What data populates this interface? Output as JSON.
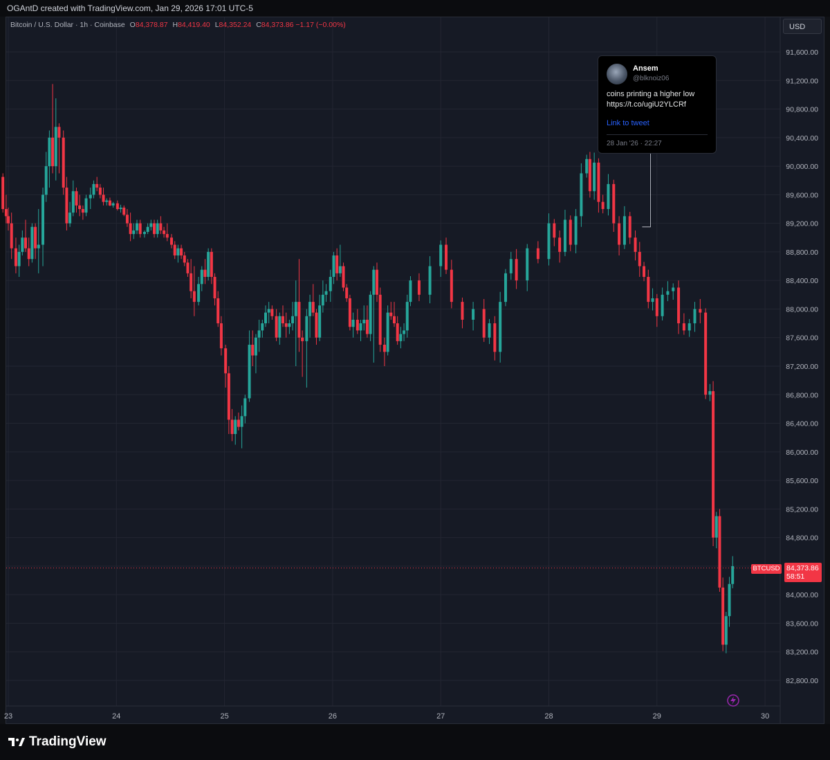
{
  "header": {
    "attribution": "OGAntD created with TradingView.com, Jan 29, 2026 17:01 UTC-5"
  },
  "legend": {
    "symbol_text": "Bitcoin / U.S. Dollar · 1h · Coinbase",
    "open_label": "O",
    "open": "84,378.87",
    "high_label": "H",
    "high": "84,419.40",
    "low_label": "L",
    "low": "84,352.24",
    "close_label": "C",
    "close": "84,373.86",
    "change": "−1.17 (−0.00%)"
  },
  "currency_button": "USD",
  "price_tag": {
    "symbol": "BTCUSD",
    "price": "84,373.86",
    "countdown": "58:51"
  },
  "tweet": {
    "name": "Ansem",
    "handle": "@blknoiz06",
    "text_line1": "coins printing a higher low",
    "text_line2": "https://t.co/ugiU2YLCRf",
    "link_label": "Link to tweet",
    "date": "28 Jan '26 · 22:27"
  },
  "footer": {
    "logo_text": "TradingView"
  },
  "colors": {
    "up": "#26a69a",
    "down": "#f23645",
    "background": "#161a25",
    "grid": "#232632"
  },
  "icons": [
    "tradingview-logo-icon",
    "lightning-badge-icon"
  ],
  "chart_data": {
    "type": "candlestick",
    "title": "Bitcoin / U.S. Dollar · 1h · Coinbase",
    "ylim": [
      82600,
      91950
    ],
    "y_ticks": [
      91600,
      91200,
      90800,
      90400,
      90000,
      89600,
      89200,
      88800,
      88400,
      88000,
      87600,
      87200,
      86800,
      86400,
      86000,
      85600,
      85200,
      84800,
      84400,
      84000,
      83600,
      83200,
      82800
    ],
    "y_tick_labels": [
      "91,600.00",
      "91,200.00",
      "90,800.00",
      "90,400.00",
      "90,000.00",
      "89,600.00",
      "89,200.00",
      "88,800.00",
      "88,400.00",
      "88,000.00",
      "87,600.00",
      "87,200.00",
      "86,800.00",
      "86,400.00",
      "86,000.00",
      "85,600.00",
      "85,200.00",
      "84,800.00",
      "84,400.00",
      "84,000.00",
      "83,600.00",
      "83,200.00",
      "82,800.00"
    ],
    "x_ticks": [
      23,
      24,
      25,
      26,
      27,
      28,
      29,
      30
    ],
    "x_tick_labels": [
      "23",
      "24",
      "25",
      "26",
      "27",
      "28",
      "29",
      "30"
    ],
    "last_price": 84373.86,
    "tweet_marker_price": 89150,
    "tweet_marker_day": 28.94,
    "candles": [
      [
        22.95,
        89850,
        89900,
        89350,
        89400
      ],
      [
        22.98,
        89400,
        89600,
        89200,
        89300
      ],
      [
        23.0,
        89300,
        89420,
        89100,
        89200
      ],
      [
        23.03,
        89200,
        89350,
        88700,
        88850
      ],
      [
        23.07,
        88850,
        89000,
        88500,
        88600
      ],
      [
        23.1,
        88600,
        88900,
        88450,
        88800
      ],
      [
        23.13,
        88800,
        89100,
        88750,
        89000
      ],
      [
        23.16,
        89000,
        89250,
        88800,
        88850
      ],
      [
        23.19,
        88850,
        89000,
        88600,
        88700
      ],
      [
        23.22,
        88700,
        89200,
        88650,
        89150
      ],
      [
        23.25,
        89150,
        89200,
        88700,
        88850
      ],
      [
        23.28,
        88850,
        89400,
        88500,
        88900
      ],
      [
        23.32,
        88900,
        89700,
        88600,
        89600
      ],
      [
        23.35,
        89600,
        90200,
        89500,
        90000
      ],
      [
        23.38,
        90000,
        90500,
        89700,
        90400
      ],
      [
        23.41,
        90400,
        91150,
        89900,
        90000
      ],
      [
        23.44,
        90000,
        90950,
        89800,
        90550
      ],
      [
        23.47,
        90550,
        90600,
        89900,
        90400
      ],
      [
        23.51,
        90400,
        90500,
        89600,
        89700
      ],
      [
        23.54,
        89700,
        89850,
        89100,
        89200
      ],
      [
        23.57,
        89200,
        89500,
        89150,
        89350
      ],
      [
        23.6,
        89350,
        89800,
        89300,
        89650
      ],
      [
        23.63,
        89650,
        89700,
        89350,
        89450
      ],
      [
        23.66,
        89450,
        89600,
        89300,
        89400
      ],
      [
        23.69,
        89400,
        89450,
        89250,
        89350
      ],
      [
        23.72,
        89350,
        89600,
        89300,
        89550
      ],
      [
        23.76,
        89550,
        89700,
        89400,
        89600
      ],
      [
        23.79,
        89600,
        89800,
        89550,
        89750
      ],
      [
        23.82,
        89750,
        89850,
        89650,
        89700
      ],
      [
        23.85,
        89700,
        89750,
        89550,
        89600
      ],
      [
        23.88,
        89600,
        89700,
        89450,
        89500
      ],
      [
        23.91,
        89500,
        89550,
        89450,
        89520
      ],
      [
        23.94,
        89520,
        89560,
        89440,
        89450
      ],
      [
        23.97,
        89450,
        89500,
        89420,
        89480
      ],
      [
        24.01,
        89480,
        89520,
        89380,
        89400
      ],
      [
        24.04,
        89400,
        89460,
        89350,
        89420
      ],
      [
        24.07,
        89420,
        89450,
        89300,
        89320
      ],
      [
        24.1,
        89320,
        89400,
        89150,
        89200
      ],
      [
        24.13,
        89200,
        89350,
        88950,
        89050
      ],
      [
        24.16,
        89050,
        89200,
        88980,
        89100
      ],
      [
        24.19,
        89100,
        89250,
        89050,
        89200
      ],
      [
        24.22,
        89200,
        89250,
        89000,
        89050
      ],
      [
        24.26,
        89050,
        89100,
        89000,
        89080
      ],
      [
        24.29,
        89080,
        89200,
        89050,
        89150
      ],
      [
        24.32,
        89150,
        89250,
        89100,
        89200
      ],
      [
        24.35,
        89200,
        89250,
        89000,
        89050
      ],
      [
        24.38,
        89050,
        89250,
        89000,
        89200
      ],
      [
        24.41,
        89200,
        89300,
        89050,
        89100
      ],
      [
        24.44,
        89100,
        89150,
        89000,
        89050
      ],
      [
        24.47,
        89050,
        89200,
        88950,
        89000
      ],
      [
        24.51,
        89000,
        89050,
        88850,
        88900
      ],
      [
        24.54,
        88900,
        88950,
        88700,
        88750
      ],
      [
        24.57,
        88750,
        88900,
        88650,
        88850
      ],
      [
        24.6,
        88850,
        88900,
        88700,
        88750
      ],
      [
        24.63,
        88750,
        88800,
        88600,
        88650
      ],
      [
        24.66,
        88650,
        88700,
        88450,
        88500
      ],
      [
        24.69,
        88500,
        88700,
        88150,
        88250
      ],
      [
        24.72,
        88250,
        88600,
        87900,
        88100
      ],
      [
        24.76,
        88100,
        88450,
        88050,
        88350
      ],
      [
        24.79,
        88350,
        88600,
        88250,
        88550
      ],
      [
        24.82,
        88550,
        88700,
        88350,
        88450
      ],
      [
        24.85,
        88450,
        88850,
        88400,
        88800
      ],
      [
        24.88,
        88800,
        88850,
        88350,
        88450
      ],
      [
        24.91,
        88450,
        88500,
        88050,
        88150
      ],
      [
        24.94,
        88150,
        88250,
        87750,
        87800
      ],
      [
        24.97,
        87800,
        87900,
        87350,
        87450
      ],
      [
        25.01,
        87450,
        87500,
        86900,
        87100
      ],
      [
        25.04,
        87100,
        87200,
        86250,
        86450
      ],
      [
        25.07,
        86450,
        86600,
        86150,
        86250
      ],
      [
        25.1,
        86250,
        86500,
        86100,
        86450
      ],
      [
        25.13,
        86450,
        86550,
        86300,
        86350
      ],
      [
        25.16,
        86350,
        86650,
        86050,
        86500
      ],
      [
        25.19,
        86500,
        86800,
        86400,
        86750
      ],
      [
        25.23,
        86750,
        87700,
        86700,
        87500
      ],
      [
        25.26,
        87500,
        87700,
        87200,
        87350
      ],
      [
        25.29,
        87350,
        87650,
        87100,
        87600
      ],
      [
        25.32,
        87600,
        87850,
        87400,
        87700
      ],
      [
        25.35,
        87700,
        87850,
        87600,
        87800
      ],
      [
        25.38,
        87800,
        88050,
        87750,
        87950
      ],
      [
        25.41,
        87950,
        88100,
        87800,
        88000
      ],
      [
        25.44,
        88000,
        88050,
        87850,
        87900
      ],
      [
        25.48,
        87900,
        88000,
        87550,
        87600
      ],
      [
        25.51,
        87600,
        87950,
        87500,
        87900
      ],
      [
        25.54,
        87900,
        88050,
        87750,
        87800
      ],
      [
        25.57,
        87800,
        87950,
        87600,
        87750
      ],
      [
        25.6,
        87750,
        87850,
        87650,
        87800
      ],
      [
        25.63,
        87800,
        88100,
        87700,
        87900
      ],
      [
        25.66,
        87900,
        88400,
        87200,
        88100
      ],
      [
        25.69,
        88100,
        88700,
        87400,
        87600
      ],
      [
        25.72,
        87600,
        87700,
        87050,
        87550
      ],
      [
        25.76,
        87550,
        88000,
        86900,
        87900
      ],
      [
        25.79,
        87900,
        88200,
        87600,
        88100
      ],
      [
        25.82,
        88100,
        88350,
        87900,
        87950
      ],
      [
        25.85,
        87950,
        88000,
        87500,
        87600
      ],
      [
        25.88,
        87600,
        88200,
        87550,
        88050
      ],
      [
        25.91,
        88050,
        88400,
        87950,
        88200
      ],
      [
        25.94,
        88200,
        88350,
        88100,
        88250
      ],
      [
        25.98,
        88250,
        88550,
        88100,
        88450
      ],
      [
        26.01,
        88450,
        88800,
        88350,
        88750
      ],
      [
        26.04,
        88750,
        88850,
        88400,
        88500
      ],
      [
        26.07,
        88500,
        88900,
        88450,
        88600
      ],
      [
        26.1,
        88600,
        88650,
        88250,
        88300
      ],
      [
        26.13,
        88300,
        88350,
        88100,
        88150
      ],
      [
        26.16,
        88150,
        88200,
        87700,
        87750
      ],
      [
        26.19,
        87750,
        87950,
        87600,
        87850
      ],
      [
        26.23,
        87850,
        88000,
        87650,
        87700
      ],
      [
        26.26,
        87700,
        87850,
        87550,
        87800
      ],
      [
        26.29,
        87800,
        88050,
        87700,
        87850
      ],
      [
        26.32,
        87850,
        88050,
        87600,
        87650
      ],
      [
        26.35,
        87650,
        88250,
        87550,
        88200
      ],
      [
        26.38,
        88200,
        88600,
        87250,
        88550
      ],
      [
        26.41,
        88550,
        88650,
        88100,
        88200
      ],
      [
        26.44,
        88200,
        88300,
        87400,
        87500
      ],
      [
        26.48,
        87500,
        87600,
        87200,
        87400
      ],
      [
        26.51,
        87400,
        88050,
        87350,
        87950
      ],
      [
        26.54,
        87950,
        88100,
        87850,
        87900
      ],
      [
        26.57,
        87900,
        88100,
        87750,
        87800
      ],
      [
        26.6,
        87800,
        87900,
        87500,
        87550
      ],
      [
        26.63,
        87550,
        87750,
        87450,
        87650
      ],
      [
        26.66,
        87650,
        87800,
        87550,
        87700
      ],
      [
        26.69,
        87700,
        88200,
        87600,
        88100
      ]
    ]
  }
}
